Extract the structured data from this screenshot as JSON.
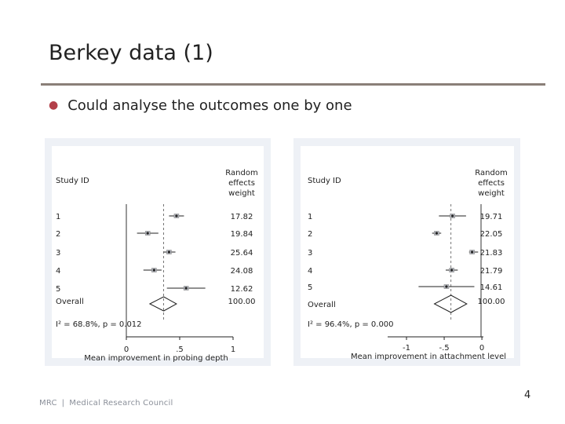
{
  "slide": {
    "title": "Berkey data (1)",
    "bullet": "Could analyse the outcomes one by one",
    "page_number": "4",
    "footer": {
      "org_abbrev": "MRC",
      "org_name": "Medical Research Council"
    }
  },
  "chart_data": [
    {
      "type": "forest",
      "header_left": "Study ID",
      "header_right": [
        "Random",
        "effects",
        "weight"
      ],
      "xlabel": "Mean improvement in probing depth",
      "ticks": [
        "0",
        ".5",
        "1"
      ],
      "tick_values": [
        0,
        0.5,
        1
      ],
      "xlim": [
        0,
        1
      ],
      "overall_estimate": 0.35,
      "heterogeneity": "I² = 68.8%, p = 0.012",
      "studies": [
        {
          "label": "1",
          "estimate": 0.47,
          "lower": 0.4,
          "upper": 0.54,
          "weight": "17.82"
        },
        {
          "label": "2",
          "estimate": 0.2,
          "lower": 0.1,
          "upper": 0.3,
          "weight": "19.84"
        },
        {
          "label": "3",
          "estimate": 0.4,
          "lower": 0.35,
          "upper": 0.46,
          "weight": "25.64"
        },
        {
          "label": "4",
          "estimate": 0.26,
          "lower": 0.16,
          "upper": 0.33,
          "weight": "24.08"
        },
        {
          "label": "5",
          "estimate": 0.56,
          "lower": 0.38,
          "upper": 0.74,
          "weight": "12.62"
        }
      ],
      "overall": {
        "label": "Overall",
        "estimate": 0.35,
        "lower": 0.22,
        "upper": 0.47,
        "weight": "100.00"
      }
    },
    {
      "type": "forest",
      "header_left": "Study ID",
      "header_right": [
        "Random",
        "effects",
        "weight"
      ],
      "xlabel": "Mean improvement in attachment level",
      "ticks": [
        "-1",
        "-.5",
        "0"
      ],
      "tick_values": [
        -1,
        -0.5,
        0
      ],
      "xlim": [
        -1.25,
        0.02
      ],
      "overall_estimate": -0.41,
      "heterogeneity": "I² = 96.4%, p = 0.000",
      "studies": [
        {
          "label": "1",
          "estimate": -0.39,
          "lower": -0.57,
          "upper": -0.21,
          "weight": "19.71"
        },
        {
          "label": "2",
          "estimate": -0.6,
          "lower": -0.66,
          "upper": -0.54,
          "weight": "22.05"
        },
        {
          "label": "3",
          "estimate": -0.13,
          "lower": -0.17,
          "upper": -0.05,
          "weight": "21.83"
        },
        {
          "label": "4",
          "estimate": -0.4,
          "lower": -0.48,
          "upper": -0.32,
          "weight": "21.79"
        },
        {
          "label": "5",
          "estimate": -0.47,
          "lower": -0.84,
          "upper": -0.1,
          "weight": "14.61"
        }
      ],
      "overall": {
        "label": "Overall",
        "estimate": -0.41,
        "lower": -0.63,
        "upper": -0.2,
        "weight": "100.00"
      }
    }
  ]
}
